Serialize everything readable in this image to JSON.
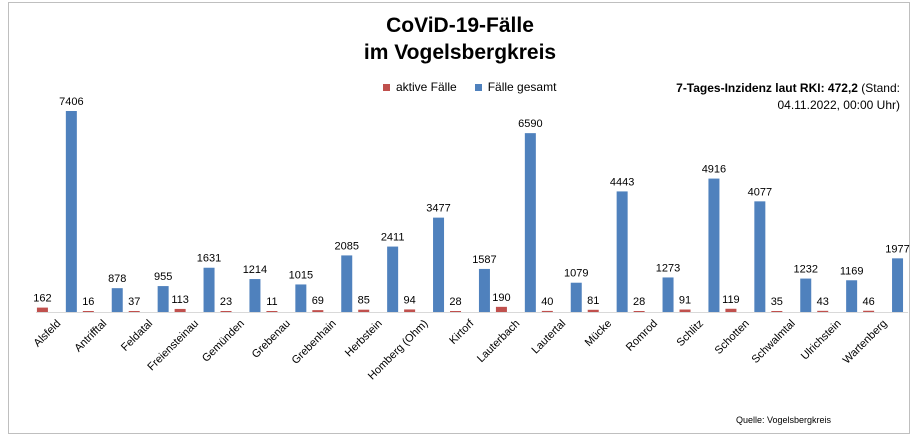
{
  "chart_data": {
    "type": "bar",
    "title_line1": "CoViD-19-Fälle",
    "title_line2": "im Vogelsbergkreis",
    "categories": [
      "Alsfeld",
      "Antrifftal",
      "Feldatal",
      "Freiensteinau",
      "Gemünden",
      "Grebenau",
      "Grebenhain",
      "Herbstein",
      "Homberg (Ohm)",
      "Kirtorf",
      "Lauterbach",
      "Lautertal",
      "Mücke",
      "Romrod",
      "Schlitz",
      "Schotten",
      "Schwalmtal",
      "Ulrichstein",
      "Wartenberg"
    ],
    "series": [
      {
        "name": "aktive Fälle",
        "color": "#c0504d",
        "values": [
          162,
          16,
          37,
          113,
          23,
          11,
          69,
          85,
          94,
          28,
          190,
          40,
          81,
          28,
          91,
          119,
          35,
          43,
          46
        ]
      },
      {
        "name": "Fälle gesamt",
        "color": "#4f81bd",
        "values": [
          7406,
          878,
          955,
          1631,
          1214,
          1015,
          2085,
          2411,
          3477,
          1587,
          6590,
          1079,
          4443,
          1273,
          4916,
          4077,
          1232,
          1169,
          1977
        ]
      }
    ],
    "ylim": [
      0,
      7600
    ],
    "grid": false,
    "legend_position": "top-center"
  },
  "incidence": {
    "bold_text": "7-Tages-Inzidenz laut RKI: 472,2",
    "rest_text": " (Stand:",
    "line2": "04.11.2022, 00:00 Uhr)"
  },
  "source": "Quelle: Vogelsbergkreis"
}
